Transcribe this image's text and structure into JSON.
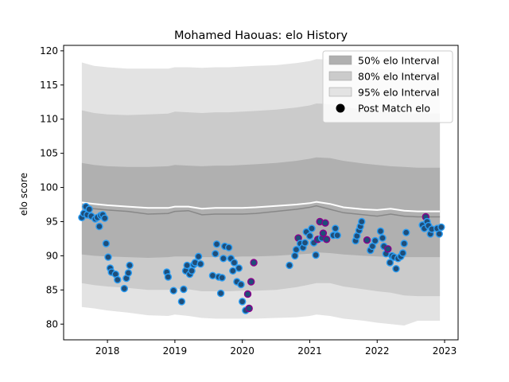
{
  "chart_data": {
    "type": "line",
    "title": "Mohamed Haouas: elo History",
    "xlabel": "",
    "ylabel": "elo score",
    "xlim": [
      2017.35,
      2023.2
    ],
    "ylim": [
      77.7,
      120.8
    ],
    "xticks": [
      2018,
      2019,
      2020,
      2021,
      2022,
      2023
    ],
    "yticks": [
      80,
      85,
      90,
      95,
      100,
      105,
      110,
      115,
      120
    ],
    "grid": false,
    "legend_position": "top-right",
    "legend": [
      {
        "label": "50% elo Interval",
        "color": "#b0b0b0"
      },
      {
        "label": "80% elo Interval",
        "color": "#cbcbcb"
      },
      {
        "label": "95% elo Interval",
        "color": "#e3e3e3"
      },
      {
        "label": "Post Match elo",
        "color": "#000000"
      }
    ],
    "colors": {
      "band95": "#e3e3e3",
      "band80": "#cbcbcb",
      "band50": "#b0b0b0",
      "median_line": "#888888",
      "mean_line": "#ffffff",
      "point_fill": "#1f4e79",
      "point_edge_default": "#2a9df4",
      "point_edge_alt": "#8b008b"
    },
    "bands": {
      "x": [
        2017.62,
        2017.8,
        2018.0,
        2018.3,
        2018.6,
        2018.9,
        2019.0,
        2019.2,
        2019.4,
        2019.6,
        2019.8,
        2020.0,
        2020.2,
        2020.5,
        2020.8,
        2021.0,
        2021.1,
        2021.3,
        2021.5,
        2021.8,
        2022.0,
        2022.2,
        2022.4,
        2022.6,
        2022.8,
        2022.93
      ],
      "p95_upper": [
        118.3,
        117.8,
        117.6,
        117.4,
        117.4,
        117.4,
        117.6,
        117.6,
        117.5,
        117.6,
        117.6,
        117.7,
        117.8,
        117.9,
        118.2,
        118.5,
        118.8,
        118.7,
        118.2,
        117.7,
        117.4,
        117.2,
        117.1,
        117.0,
        116.9,
        116.9
      ],
      "p80_upper": [
        111.3,
        110.9,
        110.7,
        110.6,
        110.7,
        110.8,
        111.1,
        111.0,
        110.9,
        111.0,
        111.0,
        111.1,
        111.2,
        111.4,
        111.7,
        112.0,
        112.3,
        112.2,
        111.8,
        111.4,
        111.2,
        111.0,
        110.9,
        110.8,
        110.8,
        110.8
      ],
      "p50_upper": [
        103.6,
        103.3,
        103.1,
        103.0,
        103.0,
        103.1,
        103.3,
        103.2,
        103.1,
        103.2,
        103.2,
        103.3,
        103.4,
        103.6,
        103.9,
        104.2,
        104.4,
        104.3,
        103.9,
        103.5,
        103.3,
        103.1,
        103.0,
        102.9,
        102.9,
        102.9
      ],
      "median": [
        97.2,
        96.9,
        96.7,
        96.5,
        96.1,
        96.2,
        96.5,
        96.6,
        96.0,
        96.1,
        96.1,
        96.1,
        96.2,
        96.5,
        96.8,
        97.1,
        97.3,
        96.8,
        96.3,
        96.0,
        95.8,
        96.1,
        95.8,
        95.7,
        95.7,
        95.7
      ],
      "mean": [
        97.8,
        97.6,
        97.4,
        97.2,
        97.0,
        97.0,
        97.2,
        97.2,
        96.9,
        97.0,
        97.0,
        97.0,
        97.1,
        97.3,
        97.5,
        97.7,
        97.9,
        97.6,
        97.1,
        96.8,
        96.7,
        96.9,
        96.6,
        96.5,
        96.5,
        96.5
      ],
      "p50_lower": [
        90.2,
        90.0,
        89.9,
        89.8,
        89.7,
        89.8,
        89.9,
        89.9,
        89.8,
        89.8,
        89.8,
        89.9,
        89.9,
        90.0,
        90.2,
        90.3,
        90.5,
        90.4,
        90.2,
        90.0,
        89.9,
        89.8,
        89.8,
        89.8,
        89.8,
        89.8
      ],
      "p80_lower": [
        86.0,
        85.7,
        85.5,
        85.3,
        85.0,
        85.0,
        85.2,
        85.1,
        84.8,
        84.8,
        84.8,
        84.9,
        84.9,
        85.0,
        85.4,
        85.8,
        86.0,
        86.0,
        85.5,
        85.1,
        84.8,
        84.6,
        84.2,
        84.1,
        84.1,
        84.1
      ],
      "p95_lower": [
        82.5,
        82.3,
        82.0,
        81.7,
        81.3,
        81.2,
        81.4,
        81.2,
        80.9,
        80.8,
        80.8,
        80.8,
        80.8,
        80.9,
        81.0,
        81.2,
        81.4,
        81.2,
        80.8,
        80.5,
        80.2,
        80.0,
        79.8,
        80.5,
        80.5,
        80.5
      ]
    },
    "points": [
      [
        2017.62,
        95.6,
        0
      ],
      [
        2017.65,
        96.2,
        0
      ],
      [
        2017.68,
        97.2,
        0
      ],
      [
        2017.7,
        96.0,
        0
      ],
      [
        2017.73,
        96.8,
        0
      ],
      [
        2017.76,
        95.8,
        0
      ],
      [
        2017.82,
        95.4,
        0
      ],
      [
        2017.85,
        95.6,
        0
      ],
      [
        2017.88,
        94.3,
        0
      ],
      [
        2017.9,
        95.9,
        0
      ],
      [
        2017.93,
        96.0,
        0
      ],
      [
        2017.96,
        95.5,
        0
      ],
      [
        2017.98,
        91.8,
        0
      ],
      [
        2018.01,
        89.8,
        0
      ],
      [
        2018.04,
        88.2,
        0
      ],
      [
        2018.06,
        87.6,
        0
      ],
      [
        2018.12,
        87.3,
        0
      ],
      [
        2018.15,
        86.5,
        0
      ],
      [
        2018.25,
        85.2,
        0
      ],
      [
        2018.28,
        86.7,
        0
      ],
      [
        2018.31,
        87.5,
        0
      ],
      [
        2018.33,
        88.6,
        0
      ],
      [
        2018.88,
        87.6,
        0
      ],
      [
        2018.9,
        86.9,
        0
      ],
      [
        2018.98,
        84.9,
        0
      ],
      [
        2019.1,
        83.3,
        0
      ],
      [
        2019.13,
        85.1,
        0
      ],
      [
        2019.16,
        87.8,
        0
      ],
      [
        2019.18,
        88.6,
        0
      ],
      [
        2019.22,
        87.3,
        0
      ],
      [
        2019.25,
        87.8,
        0
      ],
      [
        2019.28,
        88.7,
        0
      ],
      [
        2019.3,
        89.0,
        0
      ],
      [
        2019.35,
        89.9,
        0
      ],
      [
        2019.38,
        88.8,
        0
      ],
      [
        2019.56,
        87.1,
        0
      ],
      [
        2019.6,
        90.3,
        0
      ],
      [
        2019.62,
        91.7,
        0
      ],
      [
        2019.65,
        86.9,
        0
      ],
      [
        2019.68,
        84.5,
        0
      ],
      [
        2019.7,
        86.8,
        0
      ],
      [
        2019.72,
        89.6,
        0
      ],
      [
        2019.74,
        91.4,
        0
      ],
      [
        2019.8,
        91.2,
        0
      ],
      [
        2019.83,
        89.6,
        0
      ],
      [
        2019.86,
        87.8,
        0
      ],
      [
        2019.88,
        89.0,
        0
      ],
      [
        2019.92,
        86.2,
        0
      ],
      [
        2019.95,
        88.2,
        0
      ],
      [
        2019.98,
        85.8,
        0
      ],
      [
        2020.0,
        83.3,
        0
      ],
      [
        2020.05,
        82.0,
        0
      ],
      [
        2020.08,
        84.4,
        1
      ],
      [
        2020.1,
        82.3,
        1
      ],
      [
        2020.13,
        86.2,
        1
      ],
      [
        2020.17,
        89.0,
        1
      ],
      [
        2020.7,
        88.6,
        0
      ],
      [
        2020.78,
        90.0,
        0
      ],
      [
        2020.8,
        90.9,
        0
      ],
      [
        2020.83,
        92.6,
        1
      ],
      [
        2020.86,
        91.8,
        0
      ],
      [
        2020.9,
        91.2,
        0
      ],
      [
        2020.93,
        91.9,
        0
      ],
      [
        2020.95,
        93.5,
        0
      ],
      [
        2021.0,
        92.9,
        0
      ],
      [
        2021.03,
        94.0,
        0
      ],
      [
        2021.06,
        91.9,
        0
      ],
      [
        2021.09,
        90.1,
        0
      ],
      [
        2021.12,
        92.4,
        1
      ],
      [
        2021.15,
        95.0,
        1
      ],
      [
        2021.18,
        92.6,
        0
      ],
      [
        2021.2,
        93.3,
        1
      ],
      [
        2021.23,
        94.8,
        1
      ],
      [
        2021.25,
        92.4,
        1
      ],
      [
        2021.35,
        93.0,
        0
      ],
      [
        2021.38,
        94.0,
        0
      ],
      [
        2021.41,
        93.0,
        0
      ],
      [
        2021.68,
        92.2,
        0
      ],
      [
        2021.7,
        92.9,
        0
      ],
      [
        2021.73,
        93.7,
        0
      ],
      [
        2021.75,
        94.3,
        0
      ],
      [
        2021.77,
        95.0,
        0
      ],
      [
        2021.85,
        92.3,
        1
      ],
      [
        2021.9,
        90.8,
        0
      ],
      [
        2021.93,
        91.4,
        0
      ],
      [
        2021.97,
        92.2,
        0
      ],
      [
        2022.05,
        93.6,
        0
      ],
      [
        2022.08,
        92.6,
        0
      ],
      [
        2022.1,
        91.4,
        0
      ],
      [
        2022.13,
        90.3,
        0
      ],
      [
        2022.16,
        91.0,
        1
      ],
      [
        2022.19,
        89.0,
        0
      ],
      [
        2022.22,
        90.0,
        0
      ],
      [
        2022.25,
        89.8,
        0
      ],
      [
        2022.28,
        88.1,
        0
      ],
      [
        2022.31,
        89.6,
        0
      ],
      [
        2022.35,
        89.9,
        0
      ],
      [
        2022.38,
        90.4,
        0
      ],
      [
        2022.4,
        91.8,
        0
      ],
      [
        2022.43,
        93.4,
        0
      ],
      [
        2022.67,
        94.5,
        0
      ],
      [
        2022.7,
        94.0,
        0
      ],
      [
        2022.72,
        95.7,
        1
      ],
      [
        2022.74,
        95.0,
        0
      ],
      [
        2022.76,
        94.4,
        0
      ],
      [
        2022.79,
        93.2,
        0
      ],
      [
        2022.81,
        93.9,
        0
      ],
      [
        2022.89,
        94.0,
        0
      ],
      [
        2022.92,
        93.2,
        0
      ],
      [
        2022.95,
        94.2,
        0
      ]
    ]
  }
}
